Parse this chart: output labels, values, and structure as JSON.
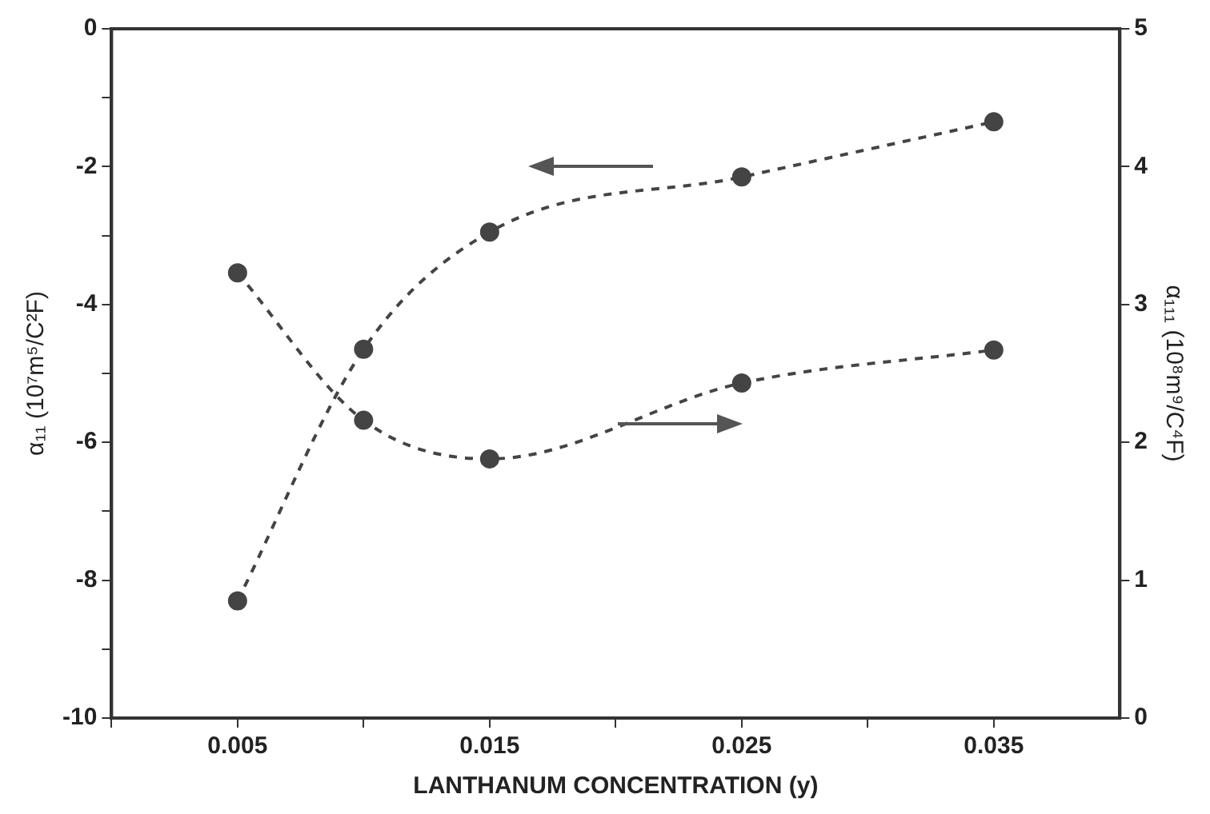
{
  "chart_data": {
    "type": "line",
    "xlabel": "LANTHANUM CONCENTRATION (y)",
    "ylabel": "α₁₁ (10⁷m⁵/C²F)",
    "y2label": "α₁₁₁ (10⁸m⁹/C⁴F)",
    "xlim": [
      0,
      0.04
    ],
    "xticks": [
      {
        "value": 0,
        "label": null
      },
      {
        "value": 0.005,
        "label": "0.005"
      },
      {
        "value": 0.01,
        "label": null
      },
      {
        "value": 0.015,
        "label": "0.015"
      },
      {
        "value": 0.02,
        "label": null
      },
      {
        "value": 0.025,
        "label": "0.025"
      },
      {
        "value": 0.03,
        "label": null
      },
      {
        "value": 0.035,
        "label": "0.035"
      }
    ],
    "ylim": [
      -10,
      0
    ],
    "yticks": [
      -10,
      {
        "value": -9,
        "label": null
      },
      -8,
      {
        "value": -7,
        "label": null
      },
      -6,
      {
        "value": -5,
        "label": null
      },
      -4,
      {
        "value": -3,
        "label": null
      },
      -2,
      {
        "value": -1,
        "label": null
      },
      0
    ],
    "y2lim": [
      0,
      5
    ],
    "y2ticks": [
      0,
      1,
      2,
      3,
      4,
      5
    ],
    "x": [
      0.005,
      0.01,
      0.015,
      0.025,
      0.035
    ],
    "series": [
      {
        "color": "#444444",
        "values": [
          -8.3,
          -4.65,
          -2.95,
          -2.15,
          -1.35
        ]
      },
      {
        "color": "#444444",
        "axis": "y2",
        "values": [
          3.23,
          2.16,
          1.88,
          2.43,
          2.67
        ]
      }
    ],
    "marker": "circle",
    "line_style": "dashed",
    "grid": false,
    "legend": false
  }
}
